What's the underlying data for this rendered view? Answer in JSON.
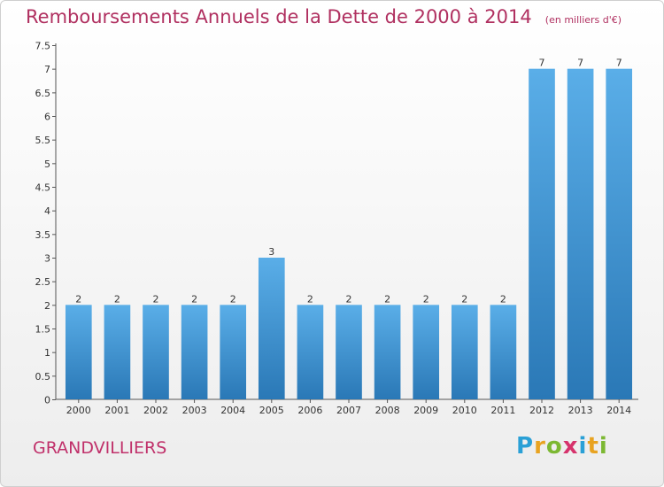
{
  "title": "Remboursements Annuels de la Dette de 2000 à 2014",
  "unit": "(en milliers d'€)",
  "town": "GRANDVILLIERS",
  "logo": {
    "letters": [
      "P",
      "r",
      "o",
      "x",
      "i",
      "t",
      "i"
    ],
    "colors": [
      "#2aa0d6",
      "#e8a321",
      "#7cb832",
      "#d6336c",
      "#2aa0d6",
      "#e8a321",
      "#7cb832"
    ]
  },
  "chart_data": {
    "type": "bar",
    "title": "Remboursements Annuels de la Dette de 2000 à 2014",
    "subtitle": "(en milliers d'€)",
    "categories": [
      "2000",
      "2001",
      "2002",
      "2003",
      "2004",
      "2005",
      "2006",
      "2007",
      "2008",
      "2009",
      "2010",
      "2011",
      "2012",
      "2013",
      "2014"
    ],
    "values": [
      2,
      2,
      2,
      2,
      2,
      3,
      2,
      2,
      2,
      2,
      2,
      2,
      7,
      7,
      7
    ],
    "data_labels": [
      "2",
      "2",
      "2",
      "2",
      "2",
      "3",
      "2",
      "2",
      "2",
      "2",
      "2",
      "2",
      "7",
      "7",
      "7"
    ],
    "ylim": [
      0,
      7.5
    ],
    "y_ticks": [
      "0",
      "0.5",
      "1",
      "1.5",
      "2",
      "2.5",
      "3",
      "3.5",
      "4",
      "4.5",
      "5",
      "5.5",
      "6",
      "6.5",
      "7",
      "7.5"
    ],
    "grid": false,
    "bar_color_top": "#5aaee8",
    "bar_color_bottom": "#2a78b6"
  }
}
